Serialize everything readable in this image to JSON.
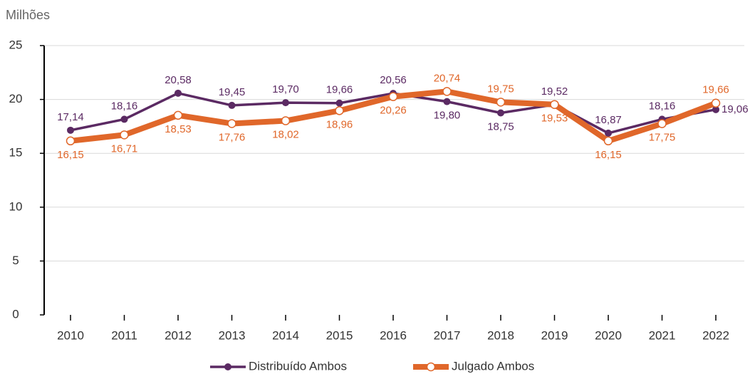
{
  "chart_data": {
    "type": "line",
    "y_label": "Milhões",
    "categories": [
      "2010",
      "2011",
      "2012",
      "2013",
      "2014",
      "2015",
      "2016",
      "2017",
      "2018",
      "2019",
      "2020",
      "2021",
      "2022"
    ],
    "series": [
      {
        "name": "Distribuído Ambos",
        "color": "#5b2a63",
        "values": [
          17.14,
          18.16,
          20.58,
          19.45,
          19.7,
          19.66,
          20.56,
          19.8,
          18.75,
          19.52,
          16.87,
          18.16,
          19.06
        ],
        "value_labels": [
          "17,14",
          "18,16",
          "20,58",
          "19,45",
          "19,70",
          "19,66",
          "20,56",
          "19,80",
          "18,75",
          "19,52",
          "16,87",
          "18,16",
          "19,06"
        ]
      },
      {
        "name": "Julgado Ambos",
        "color": "#e0672a",
        "values": [
          16.15,
          16.71,
          18.53,
          17.76,
          18.02,
          18.96,
          20.26,
          20.74,
          19.75,
          19.53,
          16.15,
          17.75,
          19.66
        ],
        "value_labels": [
          "16,15",
          "16,71",
          "18,53",
          "17,76",
          "18,02",
          "18,96",
          "20,26",
          "20,74",
          "19,75",
          "19,53",
          "16,15",
          "17,75",
          "19,66"
        ]
      }
    ],
    "ylim": [
      0,
      25
    ],
    "yticks": [
      0,
      5,
      10,
      15,
      20,
      25
    ],
    "grid": true,
    "legend": "bottom"
  }
}
